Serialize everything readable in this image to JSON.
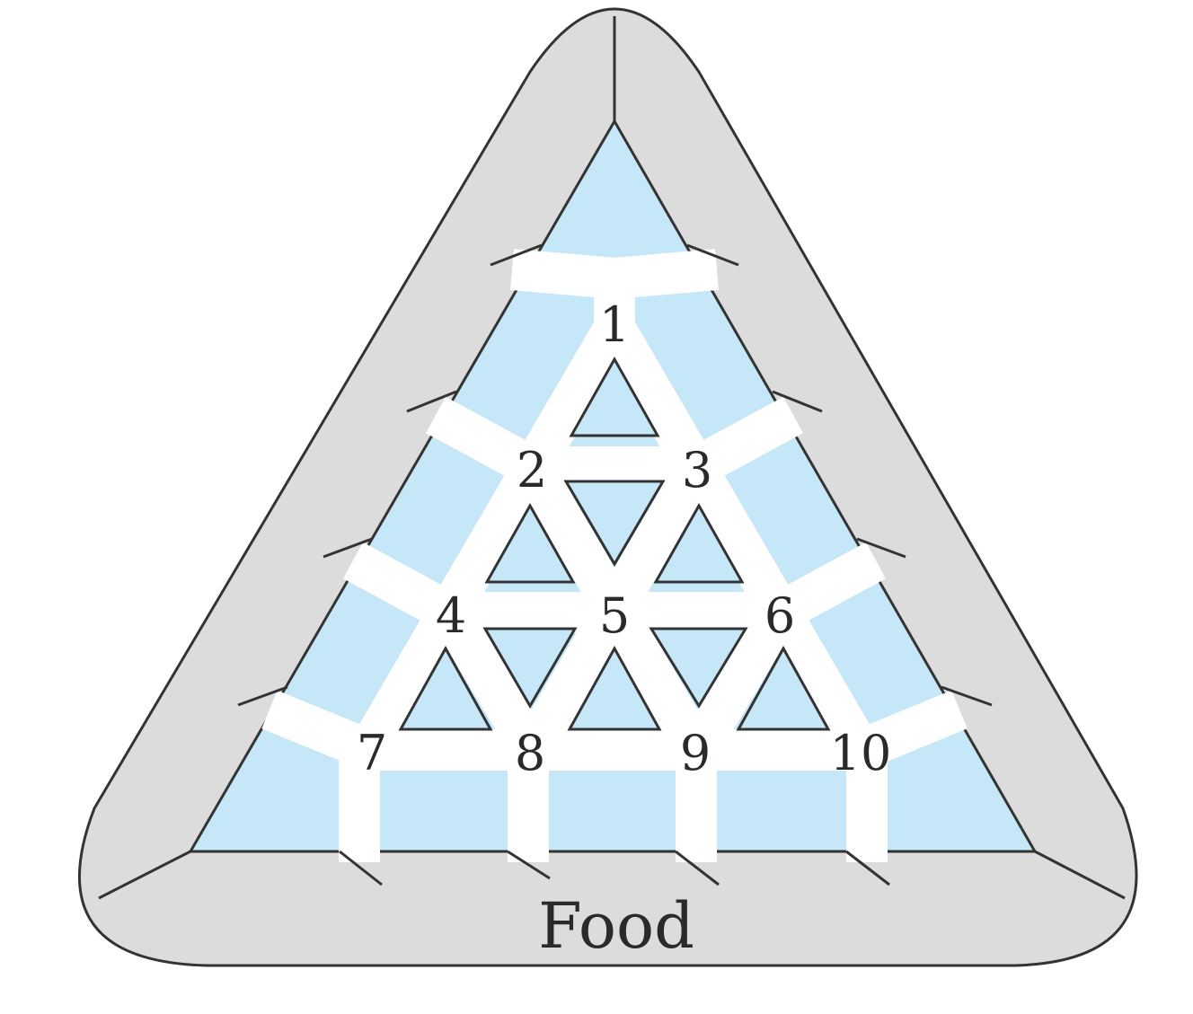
{
  "diagram": {
    "chamber_labels": [
      "1",
      "2",
      "3",
      "4",
      "5",
      "6",
      "7",
      "8",
      "9",
      "10"
    ],
    "food_label": "Food",
    "colors": {
      "outer_fill": "#dcdcdd",
      "wall_fill": "#c6e7f7",
      "corridor_fill": "#ffffff",
      "stroke": "#333333",
      "text": "#2a2a2a"
    }
  }
}
